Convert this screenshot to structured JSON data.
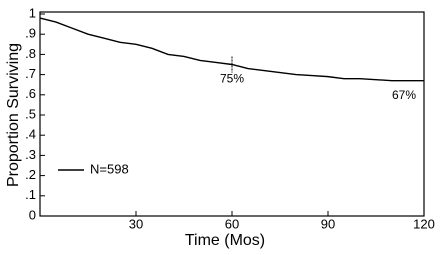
{
  "chart_data": {
    "type": "line",
    "x_label": "Time (Mos)",
    "y_label": "Proportion Surviving",
    "x": [
      0,
      5,
      10,
      15,
      20,
      25,
      30,
      35,
      40,
      45,
      50,
      55,
      60,
      65,
      70,
      75,
      80,
      85,
      90,
      95,
      100,
      105,
      110,
      115,
      120
    ],
    "series": [
      {
        "name": "N=598",
        "color": "#000000",
        "values": [
          0.98,
          0.96,
          0.93,
          0.9,
          0.88,
          0.86,
          0.85,
          0.83,
          0.8,
          0.79,
          0.77,
          0.76,
          0.75,
          0.73,
          0.72,
          0.71,
          0.7,
          0.695,
          0.69,
          0.68,
          0.68,
          0.675,
          0.67,
          0.67,
          0.67
        ]
      }
    ],
    "annotations": [
      {
        "x": 60,
        "y": 0.75,
        "label": "75%"
      },
      {
        "x": 120,
        "y": 0.67,
        "label": "67%"
      }
    ],
    "xlim": [
      0,
      120
    ],
    "xticks": [
      30,
      60,
      90,
      120
    ],
    "ylim": [
      0,
      1
    ],
    "yticks": [
      0,
      {
        "value": 0.1,
        "label": ".1"
      },
      {
        "value": 0.2,
        "label": ".2"
      },
      {
        "value": 0.3,
        "label": ".3"
      },
      {
        "value": 0.4,
        "label": ".4"
      },
      {
        "value": 0.5,
        "label": ".5"
      },
      {
        "value": 0.6,
        "label": ".6"
      },
      {
        "value": 0.7,
        "label": ".7"
      },
      {
        "value": 0.8,
        "label": ".8"
      },
      {
        "value": 0.9,
        "label": ".9"
      },
      1
    ],
    "grid": false,
    "legend": "lower left"
  }
}
